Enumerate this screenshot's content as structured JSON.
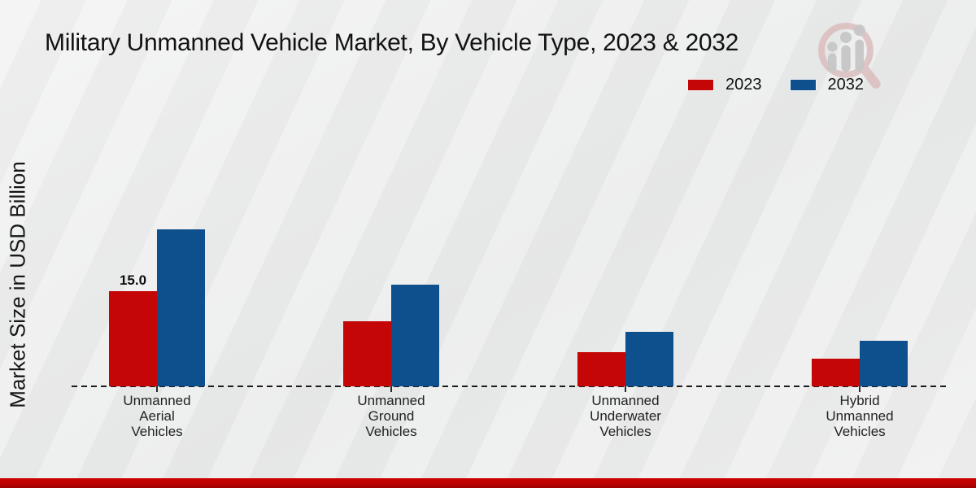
{
  "header": {
    "title": "Military Unmanned Vehicle Market, By Vehicle Type, 2023 & 2032"
  },
  "legend": {
    "items": [
      {
        "label": "2023",
        "color": "#c40606"
      },
      {
        "label": "2032",
        "color": "#0e4f8e"
      }
    ]
  },
  "chart": {
    "ylabel": "Market Size in USD Billion"
  },
  "chart_data": {
    "type": "bar",
    "title": "Military Unmanned Vehicle Market, By Vehicle Type, 2023 & 2032",
    "xlabel": "",
    "ylabel": "Market Size in USD Billion",
    "categories": [
      "Unmanned Aerial Vehicles",
      "Unmanned Ground Vehicles",
      "Unmanned Underwater Vehicles",
      "Hybrid Unmanned Vehicles"
    ],
    "category_label_lines": [
      [
        "Unmanned",
        "Aerial",
        "Vehicles"
      ],
      [
        "Unmanned",
        "Ground",
        "Vehicles"
      ],
      [
        "Unmanned",
        "Underwater",
        "Vehicles"
      ],
      [
        "Hybrid",
        "Unmanned",
        "Vehicles"
      ]
    ],
    "series": [
      {
        "name": "2023",
        "color": "#c40606",
        "values": [
          15.0,
          10.2,
          5.4,
          4.3
        ],
        "data_labels": [
          "15.0",
          null,
          null,
          null
        ]
      },
      {
        "name": "2032",
        "color": "#0e4f8e",
        "values": [
          24.6,
          16.0,
          8.5,
          7.2
        ],
        "data_labels": [
          null,
          null,
          null,
          null
        ]
      }
    ],
    "ylim": [
      0,
      26
    ],
    "y_axis_visible": false,
    "grid": false,
    "baseline_style": "dashed",
    "legend_position": "top-right"
  },
  "watermark": {
    "description": "magnifier-people-logo",
    "glass_color": "#d9b4b4",
    "figure_color": "#c7c7c7"
  },
  "footer": {
    "accent_color": "#c00000"
  }
}
